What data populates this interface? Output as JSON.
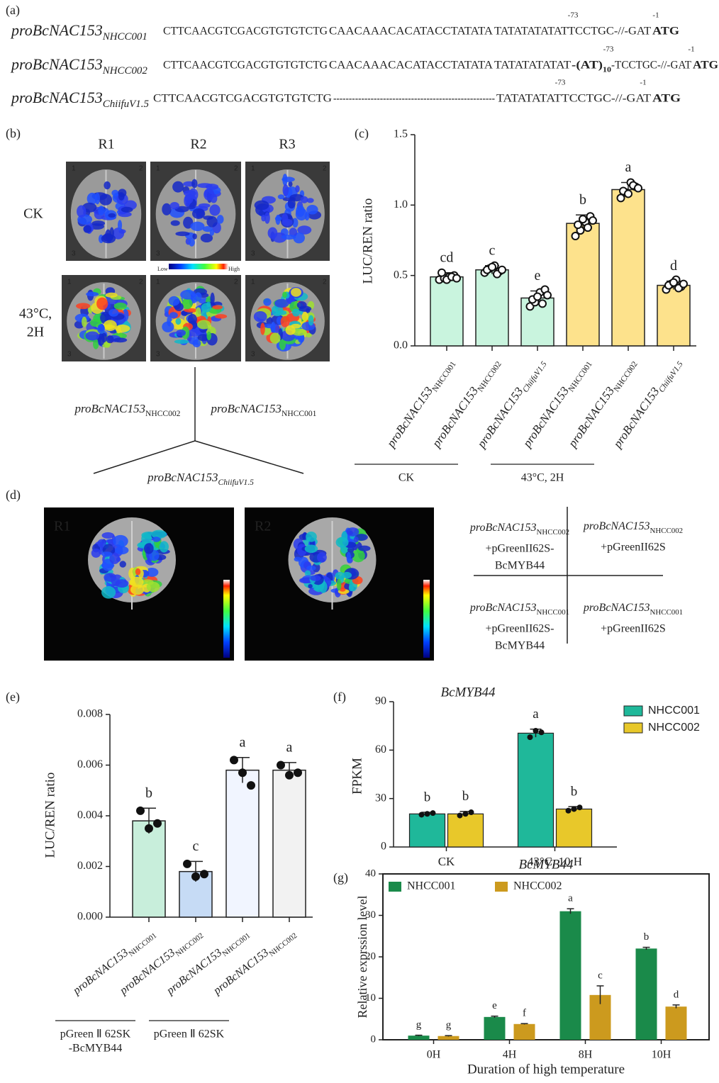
{
  "panel_labels": [
    "(a)",
    "(b)",
    "(c)",
    "(d)",
    "(e)",
    "(f)",
    "(g)"
  ],
  "gene": "proBcNAC153",
  "panel_a": {
    "rows": [
      {
        "sub": "NHCC001",
        "segments": [
          {
            "text": "CTTCAACGTCGACGTGTGTCTG",
            "color": "#222222"
          },
          {
            "text": "CAACAAACACATACCTATATA",
            "color": "#e8783a"
          },
          {
            "text": "TATATATATATTCCTGC-//-GAT",
            "color": "#222222"
          },
          {
            "text": "ATG",
            "color": "#c85a4a",
            "bold": true
          }
        ],
        "marks": [
          "-73",
          "-1"
        ]
      },
      {
        "sub": "NHCC002",
        "segments": [
          {
            "text": "CTTCAACGTCGACGTGTGTCTG",
            "color": "#222222"
          },
          {
            "text": "CAACAAACACATACCTATATA",
            "color": "#e8783a"
          },
          {
            "text": "TATATATATAT",
            "color": "#222222"
          },
          {
            "text": "-(AT)",
            "color": "#c0392b",
            "bold": true
          },
          {
            "text": "10",
            "color": "#c0392b",
            "bold": true,
            "sub": true
          },
          {
            "text": "-TCCTGC-//-GAT",
            "color": "#222222"
          },
          {
            "text": "ATG",
            "color": "#c85a4a",
            "bold": true
          }
        ],
        "marks": [
          "-73",
          "-1"
        ]
      },
      {
        "sub": "ChiifuV1.5",
        "segments": [
          {
            "text": "CTTCAACGTCGACGTGTGTCTG",
            "color": "#222222"
          },
          {
            "text": "----------------------------------------------------",
            "color": "#222222"
          },
          {
            "text": "TATATATATTCCTGC-//-GAT",
            "color": "#222222"
          },
          {
            "text": "ATG",
            "color": "#c85a4a",
            "bold": true
          }
        ],
        "marks": [
          "-73",
          "-1"
        ]
      }
    ]
  },
  "panel_b": {
    "columns": [
      "R1",
      "R2",
      "R3"
    ],
    "rows": [
      [
        "CK"
      ],
      [
        "43°C,",
        "2H"
      ]
    ],
    "scale": [
      "Low",
      "High"
    ],
    "corners": [
      "1",
      "2",
      "3"
    ],
    "constructs": [
      "NHCC002",
      "NHCC001",
      "ChiifuV1.5"
    ]
  },
  "panel_d": {
    "images": [
      "R1",
      "R2"
    ],
    "cells": [
      {
        "sub": "NHCC002",
        "lines": [
          "+pGreenII62S-",
          "BcMYB44"
        ]
      },
      {
        "sub": "NHCC002",
        "lines": [
          "+pGreenII62S"
        ]
      },
      {
        "sub": "NHCC001",
        "lines": [
          "+pGreenII62S-",
          "BcMYB44"
        ]
      },
      {
        "sub": "NHCC001",
        "lines": [
          "+pGreenII62S"
        ]
      }
    ]
  },
  "chart_data": [
    {
      "type": "bar",
      "ylabel": "LUC/REN ratio",
      "category_prefix": "proBcNAC153",
      "categories": [
        "NHCC001",
        "NHCC002",
        "ChiifuV1.5",
        "NHCC001",
        "NHCC002",
        "ChiifuV1.5"
      ],
      "italic_categories": [
        false,
        false,
        true,
        false,
        false,
        true
      ],
      "values": [
        0.49,
        0.54,
        0.34,
        0.87,
        1.11,
        0.43
      ],
      "errors": [
        0.03,
        0.03,
        0.05,
        0.06,
        0.05,
        0.03
      ],
      "points": [
        [
          0.47,
          0.48,
          0.49,
          0.5,
          0.52,
          0.47,
          0.49,
          0.48
        ],
        [
          0.52,
          0.55,
          0.57,
          0.53,
          0.54,
          0.56,
          0.51,
          0.54
        ],
        [
          0.28,
          0.31,
          0.38,
          0.4,
          0.33,
          0.35,
          0.3,
          0.36
        ],
        [
          0.78,
          0.82,
          0.88,
          0.92,
          0.86,
          0.9,
          0.84,
          0.89
        ],
        [
          1.05,
          1.09,
          1.16,
          1.13,
          1.1,
          1.08,
          1.14,
          1.12
        ],
        [
          0.4,
          0.44,
          0.47,
          0.42,
          0.43,
          0.45,
          0.41,
          0.44
        ]
      ],
      "letters": [
        "cd",
        "c",
        "e",
        "b",
        "a",
        "d"
      ],
      "colors": [
        "#c9f4de",
        "#c9f4de",
        "#c9f4de",
        "#fde28c",
        "#fde28c",
        "#fde28c"
      ],
      "point_style": "hollow",
      "ylim": [
        0,
        1.5
      ],
      "yticks": [
        {
          "value": 0,
          "label": "0.0"
        },
        0.5,
        {
          "value": 1,
          "label": "1.0"
        },
        1.5
      ],
      "group_labels": [
        [
          "CK"
        ],
        [
          "43°C, 2H"
        ]
      ]
    },
    {
      "type": "bar",
      "ylabel": "LUC/REN ratio",
      "category_prefix": "proBcNAC153",
      "categories": [
        "NHCC001",
        "NHCC002",
        "NHCC001",
        "NHCC002"
      ],
      "italic_categories": [
        false,
        false,
        false,
        false
      ],
      "values": [
        0.0038,
        0.0018,
        0.0058,
        0.0058
      ],
      "errors": [
        0.0005,
        0.0004,
        0.0005,
        0.0003
      ],
      "points": [
        [
          0.0042,
          0.0035,
          0.0037
        ],
        [
          0.0021,
          0.0016,
          0.0017
        ],
        [
          0.0062,
          0.0057,
          0.0052
        ],
        [
          0.006,
          0.0056,
          0.0057
        ]
      ],
      "letters": [
        "b",
        "c",
        "a",
        "a"
      ],
      "colors": [
        "#c8eedb",
        "#c6dbf5",
        "#f1f5ff",
        "#f2f2f2"
      ],
      "point_style": "filled",
      "ylim": [
        0,
        0.008
      ],
      "yticks": [
        {
          "value": 0,
          "label": "0.000"
        },
        {
          "value": 0.002,
          "label": "0.002"
        },
        {
          "value": 0.004,
          "label": "0.004"
        },
        {
          "value": 0.006,
          "label": "0.006"
        },
        {
          "value": 0.008,
          "label": "0.008"
        }
      ],
      "group_labels": [
        [
          "pGreen Ⅱ 62SK",
          "-BcMYB44"
        ],
        [
          "pGreen Ⅱ 62SK"
        ]
      ]
    },
    {
      "type": "grouped_bar",
      "title": "BcMYB44",
      "ylabel": "FPKM",
      "categories": [
        "CK",
        "43°C, 10 H"
      ],
      "series": [
        {
          "name": "NHCC001",
          "color": "#1fb89a",
          "values": [
            20.5,
            70.5
          ],
          "errors": [
            1,
            2.5
          ],
          "points": [
            [
              20,
              20.5,
              21
            ],
            [
              68,
              72,
              71
            ]
          ],
          "letters": [
            "b",
            "a"
          ]
        },
        {
          "name": "NHCC002",
          "color": "#e8c82a",
          "values": [
            20.5,
            23.5
          ],
          "errors": [
            1.5,
            1.5
          ],
          "points": [
            [
              19.5,
              20.5,
              21.5
            ],
            [
              22.5,
              23.5,
              24.5
            ]
          ],
          "letters": [
            "b",
            "b"
          ]
        }
      ],
      "ylim": [
        0,
        90
      ],
      "yticks": [
        0,
        30,
        60,
        90
      ],
      "legend": "upper-right",
      "frame": false
    },
    {
      "type": "grouped_bar",
      "title": "BcMYB44",
      "xlabel": "Duration of high temperature",
      "ylabel": "Relative exprssion level",
      "categories": [
        "0H",
        "4H",
        "8H",
        "10H"
      ],
      "series": [
        {
          "name": "NHCC001",
          "color": "#1a8a4a",
          "values": [
            1,
            5.5,
            31,
            22
          ],
          "errors": [
            0.1,
            0.2,
            0.6,
            0.3
          ],
          "letters": [
            "g",
            "e",
            "a",
            "b"
          ]
        },
        {
          "name": "NHCC002",
          "color": "#cc9a1e",
          "values": [
            0.9,
            3.8,
            10.8,
            8
          ],
          "errors": [
            0.1,
            0.1,
            2.2,
            0.4
          ],
          "letters": [
            "g",
            "f",
            "c",
            "d"
          ]
        }
      ],
      "ylim": [
        0,
        40
      ],
      "yticks": [
        0,
        10,
        20,
        30,
        40
      ],
      "legend": "upper-left",
      "frame": true
    }
  ]
}
